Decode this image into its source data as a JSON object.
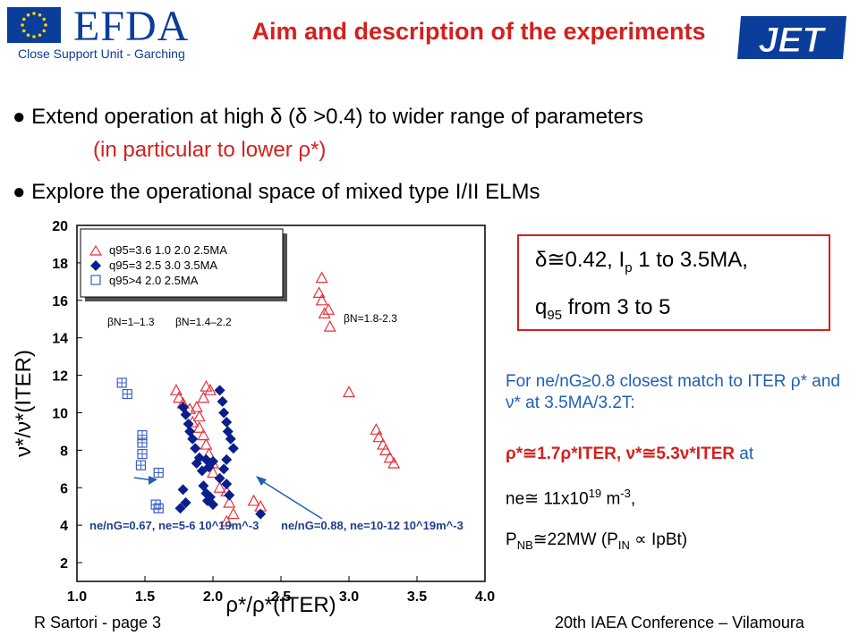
{
  "header": {
    "org_name": "EFDA",
    "org_subtitle": "Close Support Unit - Garching",
    "title": "Aim and description of the experiments",
    "logo_text": "JET"
  },
  "bullets": [
    {
      "text": "Extend operation at high δ (δ >0.4) to wider range of parameters",
      "sub": "(in particular to lower ρ*)"
    },
    {
      "text": "Explore the operational space of mixed type I/II ELMs"
    }
  ],
  "info_box": {
    "line1": "δ≅0.42,  I",
    "line1_sub": "p",
    "line1_rest": " 1 to 3.5MA,",
    "line2": "q",
    "line2_sub": "95",
    "line2_rest": " from 3 to 5"
  },
  "notes": {
    "blue": "For ne/nG≥0.8 closest match to ITER ρ* and ν* at 3.5MA/3.2T:",
    "red_bold": "ρ*≅1.7ρ*ITER, ν*≅5.3ν*ITER",
    "red_at": " at",
    "density": "ne≅ 11x10",
    "density_exp": "19",
    "density_unit": " m",
    "density_unit_exp": "-3",
    "density_end": ",",
    "pnb": "P",
    "pnb_sub": "NB",
    "pnb_rest": "≅22MW (P",
    "pnb_in": "IN",
    "pnb_end": " ∝ IpBt)"
  },
  "footer": {
    "left": "R Sartori - page 3",
    "right": "20th IAEA Conference – Vilamoura"
  },
  "chart_data": {
    "type": "scatter",
    "xlabel": "ρ*/ρ*(ITER)",
    "ylabel": "ν*/ν*(ITER)",
    "xlim": [
      1.0,
      4.0
    ],
    "ylim": [
      1,
      20
    ],
    "x_ticks": [
      "1.0",
      "1.5",
      "2.0",
      "2.5",
      "3.0",
      "3.5",
      "4.0"
    ],
    "y_ticks": [
      "2",
      "4",
      "6",
      "8",
      "10",
      "12",
      "14",
      "16",
      "18",
      "20"
    ],
    "legend_position": "top-left",
    "series": [
      {
        "name": "q95=3.6   1.0   2.0   2.5MA",
        "marker": "triangle",
        "color": "#e8323c",
        "points": [
          [
            1.73,
            11.2
          ],
          [
            1.75,
            10.8
          ],
          [
            1.78,
            10.5
          ],
          [
            1.83,
            10.2
          ],
          [
            1.88,
            10.3
          ],
          [
            1.9,
            9.8
          ],
          [
            1.85,
            9.5
          ],
          [
            1.9,
            9.2
          ],
          [
            1.95,
            11.4
          ],
          [
            1.98,
            11.2
          ],
          [
            1.93,
            10.8
          ],
          [
            1.93,
            8.8
          ],
          [
            1.95,
            8.3
          ],
          [
            1.97,
            7.8
          ],
          [
            2.0,
            7.3
          ],
          [
            2.0,
            6.8
          ],
          [
            2.05,
            6.0
          ],
          [
            2.1,
            5.8
          ],
          [
            2.12,
            5.2
          ],
          [
            2.15,
            4.6
          ],
          [
            2.1,
            4.2
          ],
          [
            2.3,
            5.3
          ],
          [
            2.35,
            5.0
          ],
          [
            2.8,
            17.2
          ],
          [
            2.78,
            16.4
          ],
          [
            2.8,
            16.0
          ],
          [
            2.82,
            15.3
          ],
          [
            2.85,
            15.5
          ],
          [
            2.86,
            14.6
          ],
          [
            3.0,
            11.1
          ],
          [
            3.2,
            9.1
          ],
          [
            3.22,
            8.7
          ],
          [
            3.25,
            8.3
          ],
          [
            3.27,
            8.0
          ],
          [
            3.3,
            7.6
          ],
          [
            3.33,
            7.3
          ]
        ]
      },
      {
        "name": "q95=3    2.5   3.0   3.5MA",
        "marker": "diamond",
        "color": "#0a1e8c",
        "points": [
          [
            1.78,
            10.3
          ],
          [
            1.8,
            9.9
          ],
          [
            1.82,
            9.4
          ],
          [
            1.83,
            9.0
          ],
          [
            1.85,
            8.6
          ],
          [
            1.87,
            8.1
          ],
          [
            1.9,
            7.6
          ],
          [
            1.88,
            7.3
          ],
          [
            1.92,
            6.9
          ],
          [
            1.95,
            7.5
          ],
          [
            1.97,
            7.1
          ],
          [
            2.0,
            7.4
          ],
          [
            1.93,
            6.1
          ],
          [
            1.95,
            5.7
          ],
          [
            1.96,
            5.3
          ],
          [
            1.98,
            5.5
          ],
          [
            2.0,
            5.1
          ],
          [
            1.78,
            5.9
          ],
          [
            1.8,
            5.2
          ],
          [
            1.76,
            4.9
          ],
          [
            2.05,
            11.2
          ],
          [
            2.07,
            10.6
          ],
          [
            2.08,
            10.0
          ],
          [
            2.1,
            9.5
          ],
          [
            2.11,
            9.0
          ],
          [
            2.13,
            8.6
          ],
          [
            2.15,
            8.1
          ],
          [
            2.1,
            7.5
          ],
          [
            2.08,
            7.0
          ],
          [
            2.05,
            6.5
          ],
          [
            2.1,
            6.2
          ],
          [
            2.12,
            5.6
          ],
          [
            2.35,
            4.6
          ]
        ]
      },
      {
        "name": "q95>4          2.0   2.5MA",
        "marker": "square",
        "color": "#3a5ec4",
        "points": [
          [
            1.33,
            11.6
          ],
          [
            1.37,
            11.0
          ],
          [
            1.48,
            8.8
          ],
          [
            1.48,
            8.4
          ],
          [
            1.48,
            7.8
          ],
          [
            1.47,
            7.2
          ],
          [
            1.6,
            6.8
          ],
          [
            1.58,
            5.1
          ],
          [
            1.6,
            4.9
          ]
        ]
      }
    ],
    "annotations": [
      {
        "text": "βN=1–1.3"
      },
      {
        "text": "βN=1.4–2.2"
      },
      {
        "text": "βN=1.8-2.3"
      },
      {
        "text": "ne/nG=0.67, ne=5-6 10^19m^-3"
      },
      {
        "text": "ne/nG=0.88, ne=10-12 10^19m^-3"
      }
    ]
  }
}
